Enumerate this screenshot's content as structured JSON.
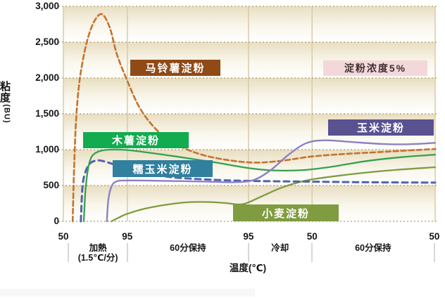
{
  "figure": {
    "y_axis_title": "粘度",
    "y_axis_unit": "(BU)",
    "x_axis_title": "温度(℃)",
    "concentration_note": "淀粉浓度5%",
    "note_bg": "#F3D8DB",
    "note_text_color": "#3E2F30"
  },
  "chart_data": {
    "type": "line",
    "title": "",
    "xlabel": "温度(℃)",
    "ylabel": "粘度(BU)",
    "ylim": [
      0,
      3000
    ],
    "y_ticks": [
      "3,000",
      "2,500",
      "2,000",
      "1,500",
      "1,000",
      "500",
      "0"
    ],
    "x_ticks": [
      {
        "label": "50",
        "xf": 0
      },
      {
        "label": "95",
        "xf": 17.2
      },
      {
        "label": "95",
        "xf": 49.8
      },
      {
        "label": "50",
        "xf": 66.9
      },
      {
        "label": "50",
        "xf": 99.8
      }
    ],
    "phases": [
      {
        "label": "加熱",
        "sublabel": "(1.5℃/分)",
        "center_xf": 9.3
      },
      {
        "label": "60分保持",
        "sublabel": "",
        "center_xf": 33.5
      },
      {
        "label": "冷却",
        "sublabel": "",
        "center_xf": 58.3
      },
      {
        "label": "60分保持",
        "sublabel": "",
        "center_xf": 83.3
      }
    ],
    "phase_separators_xf": [
      1.3,
      17.2,
      49.8,
      66.9,
      99.8
    ],
    "v_gridlines_xf": [
      0,
      17.2,
      49.8,
      66.9,
      100
    ],
    "annotation": "淀粉浓度5%",
    "grid": "horizontal dotted lines every 500 BU; vertical lines at phase boundaries",
    "legend_position": "in-plot colored label boxes",
    "band_top_color": "#E8DEC1",
    "grid_dot_color": "#B4975F",
    "grid_line_color": "#D8CBA7",
    "draw_order": [
      4,
      2,
      0,
      1,
      3
    ],
    "series": [
      {
        "name": "马铃薯淀粉",
        "name_en": "potato starch",
        "color": "#C4732E",
        "dash": "7 4",
        "width": 2.6,
        "label_bg": "#8F4A16",
        "label_text_color": "#FFFFFF",
        "points": [
          [
            2.5,
            0
          ],
          [
            2.8,
            600
          ],
          [
            3.3,
            1300
          ],
          [
            4.0,
            1800
          ],
          [
            4.9,
            2150
          ],
          [
            6.4,
            2520
          ],
          [
            8.3,
            2790
          ],
          [
            10.4,
            2890
          ],
          [
            12.5,
            2700
          ],
          [
            14.4,
            2330
          ],
          [
            17.2,
            1960
          ],
          [
            20.8,
            1560
          ],
          [
            25.6,
            1250
          ],
          [
            31.3,
            1050
          ],
          [
            37.9,
            920
          ],
          [
            45.5,
            845
          ],
          [
            52.1,
            820
          ],
          [
            58.7,
            845
          ],
          [
            66.9,
            905
          ],
          [
            75.8,
            940
          ],
          [
            86.2,
            970
          ],
          [
            100,
            1010
          ]
        ]
      },
      {
        "name": "木薯淀粉",
        "name_en": "tapioca starch",
        "color": "#35A14D",
        "dash": "",
        "width": 2.3,
        "label_bg": "#12AB4F",
        "label_text_color": "#FFFFFF",
        "points": [
          [
            5.5,
            0
          ],
          [
            5.9,
            400
          ],
          [
            6.6,
            720
          ],
          [
            7.6,
            900
          ],
          [
            9.5,
            975
          ],
          [
            12.3,
            1000
          ],
          [
            17,
            995
          ],
          [
            22.7,
            960
          ],
          [
            30.3,
            905
          ],
          [
            39.8,
            830
          ],
          [
            50.2,
            740
          ],
          [
            56.8,
            710
          ],
          [
            64.4,
            715
          ],
          [
            72,
            760
          ],
          [
            81.4,
            840
          ],
          [
            90.9,
            895
          ],
          [
            100,
            930
          ]
        ]
      },
      {
        "name": "糯玉米淀粉",
        "name_en": "waxy corn starch",
        "color": "#5063AC",
        "dash": "8 6",
        "width": 3,
        "label_bg": "#31809E",
        "label_text_color": "#FFFFFF",
        "points": [
          [
            4.7,
            0
          ],
          [
            5.1,
            450
          ],
          [
            5.7,
            650
          ],
          [
            7,
            800
          ],
          [
            9.1,
            850
          ],
          [
            11.4,
            830
          ],
          [
            15.2,
            770
          ],
          [
            20.8,
            690
          ],
          [
            28.4,
            620
          ],
          [
            37.9,
            585
          ],
          [
            49.2,
            565
          ],
          [
            64.4,
            555
          ],
          [
            81.4,
            545
          ],
          [
            100,
            540
          ]
        ]
      },
      {
        "name": "玉米淀粉",
        "name_en": "corn starch",
        "color": "#8B82C2",
        "dash": "",
        "width": 2.4,
        "label_bg": "#5A5190",
        "label_text_color": "#FFFFFF",
        "points": [
          [
            11.7,
            0
          ],
          [
            12.1,
            300
          ],
          [
            12.9,
            480
          ],
          [
            14.2,
            555
          ],
          [
            17,
            570
          ],
          [
            26.5,
            565
          ],
          [
            37.9,
            555
          ],
          [
            45.5,
            545
          ],
          [
            51.1,
            575
          ],
          [
            55.9,
            720
          ],
          [
            60.6,
            930
          ],
          [
            65.3,
            1090
          ],
          [
            70.1,
            1130
          ],
          [
            76.7,
            1110
          ],
          [
            85.2,
            1080
          ],
          [
            92.8,
            1075
          ],
          [
            100,
            1095
          ]
        ]
      },
      {
        "name": "小麦淀粉",
        "name_en": "wheat starch",
        "color": "#7E9C40",
        "dash": "",
        "width": 2.3,
        "label_bg": "#7F9C40",
        "label_text_color": "#FFFFFF",
        "points": [
          [
            12.9,
            0
          ],
          [
            15.2,
            60
          ],
          [
            17.2,
            105
          ],
          [
            21.8,
            175
          ],
          [
            27.5,
            230
          ],
          [
            33.1,
            265
          ],
          [
            38.8,
            270
          ],
          [
            43.6,
            255
          ],
          [
            48.3,
            240
          ],
          [
            53,
            340
          ],
          [
            58.7,
            470
          ],
          [
            63.4,
            545
          ],
          [
            66.9,
            585
          ],
          [
            73.9,
            635
          ],
          [
            81.4,
            680
          ],
          [
            89.9,
            720
          ],
          [
            100,
            755
          ]
        ]
      }
    ]
  }
}
